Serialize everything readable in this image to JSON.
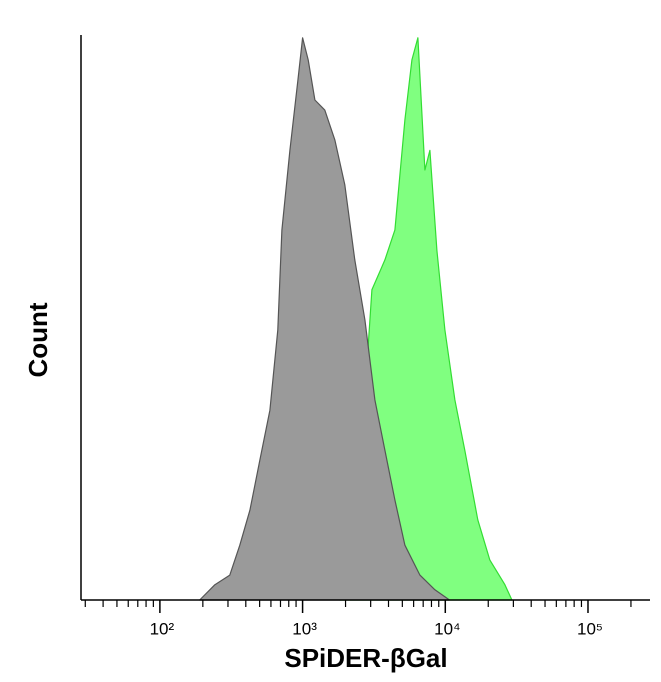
{
  "chart_data": {
    "type": "area",
    "x_label": "SPiDER-βGal",
    "y_label": "Count",
    "xscale": "log",
    "xlim": [
      28,
      272000
    ],
    "ylim": [
      0,
      100
    ],
    "xticks": [
      {
        "value": 100,
        "label": "10²"
      },
      {
        "value": 1000,
        "label": "10³"
      },
      {
        "value": 10000,
        "label": "10⁴"
      },
      {
        "value": 100000,
        "label": "10⁵"
      }
    ],
    "xticks_minor": [
      30,
      40,
      50,
      60,
      70,
      80,
      90,
      200,
      300,
      400,
      500,
      600,
      700,
      800,
      900,
      2000,
      3000,
      4000,
      5000,
      6000,
      7000,
      8000,
      9000,
      20000,
      30000,
      40000,
      50000,
      60000,
      70000,
      80000,
      90000,
      200000
    ],
    "series": [
      {
        "color": "#80ff80",
        "line_color": "#33dd33",
        "x": [
          1825,
          2525,
          3060,
          3777,
          4436,
          5212,
          5838,
          6430,
          7195,
          7798,
          8730,
          9940,
          11670,
          13710,
          16910,
          20520,
          26170,
          29310
        ],
        "values": [
          0,
          23.0,
          54.9,
          60.2,
          65.5,
          85.0,
          95.6,
          99.5,
          76.1,
          79.6,
          61.9,
          47.8,
          35.4,
          26.5,
          14.2,
          7.1,
          2.7,
          0
        ]
      },
      {
        "color": "#9a9a9a",
        "line_color": "#555555",
        "x": [
          190,
          243,
          309,
          363,
          427,
          502,
          590,
          670,
          716,
          815,
          927,
          1000,
          1094,
          1220,
          1432,
          1683,
          1977,
          2323,
          2733,
          3213,
          3777,
          4436,
          5212,
          6637,
          8453,
          10700
        ],
        "values": [
          0,
          2.7,
          4.4,
          9.7,
          15.9,
          24.8,
          33.6,
          47.8,
          65.5,
          79.6,
          92.0,
          99.5,
          95.6,
          88.5,
          86.7,
          81.4,
          73.5,
          60.2,
          49.6,
          35.4,
          26.5,
          17.7,
          9.7,
          4.4,
          1.8,
          0
        ]
      }
    ]
  }
}
